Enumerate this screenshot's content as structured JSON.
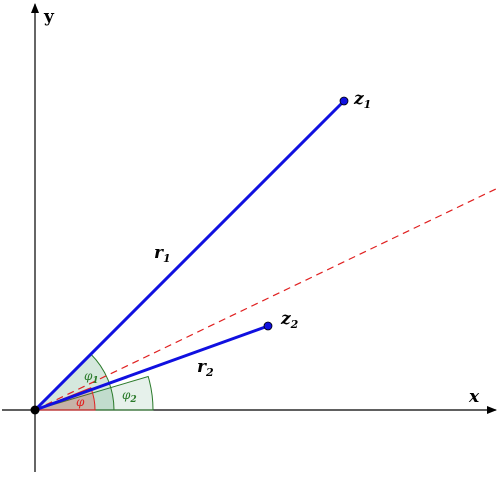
{
  "axes": {
    "x_label": "x",
    "y_label": "y"
  },
  "points": {
    "z1": {
      "name": "z",
      "sub": "1"
    },
    "z2": {
      "name": "z",
      "sub": "2"
    }
  },
  "moduli": {
    "r1": {
      "name": "r",
      "sub": "1"
    },
    "r2": {
      "name": "r",
      "sub": "2"
    }
  },
  "angles": {
    "phi1": {
      "name": "φ",
      "sub": "1"
    },
    "phi2": {
      "name": "φ",
      "sub": "2"
    },
    "phi": {
      "name": "φ"
    }
  },
  "colors": {
    "vector": "#1010e0",
    "bisector": "#e02020",
    "angle_arc": "#2a7a2a",
    "angle_fill": "#2e8b57",
    "phi_arc": "#e02020",
    "axis": "#000000"
  }
}
